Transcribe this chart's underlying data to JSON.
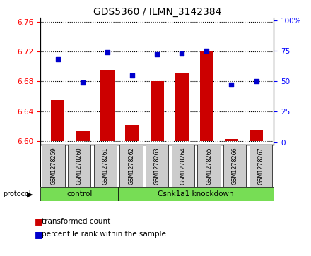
{
  "title": "GDS5360 / ILMN_3142384",
  "samples": [
    "GSM1278259",
    "GSM1278260",
    "GSM1278261",
    "GSM1278262",
    "GSM1278263",
    "GSM1278264",
    "GSM1278265",
    "GSM1278266",
    "GSM1278267"
  ],
  "bar_values": [
    6.655,
    6.613,
    6.695,
    6.622,
    6.68,
    6.692,
    6.72,
    6.603,
    6.615
  ],
  "percentile_values": [
    68,
    49,
    74,
    55,
    72,
    73,
    75,
    47,
    50
  ],
  "bar_bottom": 6.6,
  "ylim_left": [
    6.595,
    6.765
  ],
  "ylim_right": [
    -2,
    102
  ],
  "yticks_left": [
    6.6,
    6.64,
    6.68,
    6.72,
    6.76
  ],
  "yticks_right": [
    0,
    25,
    50,
    75,
    100
  ],
  "bar_color": "#cc0000",
  "dot_color": "#0000cc",
  "control_label": "control",
  "knockdown_label": "Csnk1a1 knockdown",
  "protocol_label": "protocol",
  "group_color": "#77dd55",
  "tick_bg_color": "#cccccc",
  "legend_bar_label": "transformed count",
  "legend_dot_label": "percentile rank within the sample"
}
